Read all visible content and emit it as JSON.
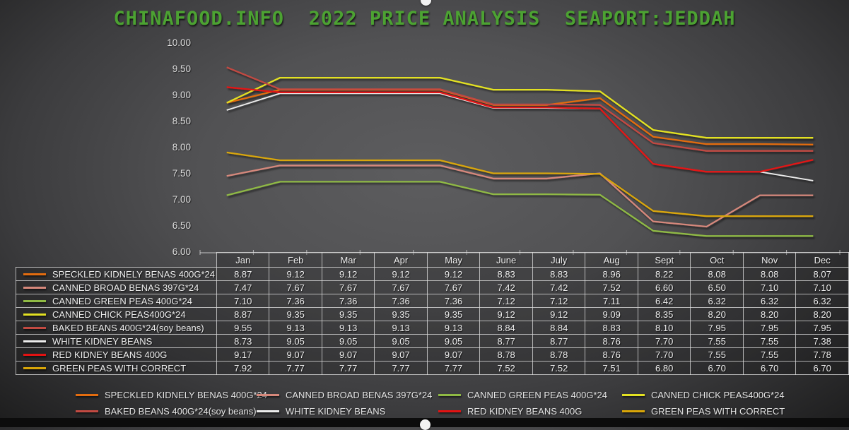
{
  "title": "CHINAFOOD.INFO  2022 PRICE ANALYSIS  SEAPORT:JEDDAH",
  "title_color": "#4CA232",
  "chart_data": {
    "type": "line",
    "title": "CHINAFOOD.INFO  2022 PRICE ANALYSIS  SEAPORT:JEDDAH",
    "xlabel": "",
    "ylabel": "",
    "ylim": [
      6.0,
      10.0
    ],
    "ytick_labels": [
      "10.00",
      "9.50",
      "9.00",
      "8.50",
      "8.00",
      "7.50",
      "7.00",
      "6.50",
      "6.00"
    ],
    "grid": false,
    "legend_position": "bottom",
    "data_table_shown": true,
    "categories": [
      "Jan",
      "Feb",
      "Mar",
      "Apr",
      "May",
      "June",
      "July",
      "Aug",
      "Sept",
      "Oct",
      "Nov",
      "Dec"
    ],
    "series": [
      {
        "name": "SPECKLED KIDNELY BENAS 400G*24",
        "color": "#E36C0F",
        "values": [
          8.87,
          9.12,
          9.12,
          9.12,
          9.12,
          8.83,
          8.83,
          8.96,
          8.22,
          8.08,
          8.08,
          8.07
        ]
      },
      {
        "name": "CANNED BROAD BENAS 397G*24",
        "color": "#D6887B",
        "values": [
          7.47,
          7.67,
          7.67,
          7.67,
          7.67,
          7.42,
          7.42,
          7.52,
          6.6,
          6.5,
          7.1,
          7.1
        ]
      },
      {
        "name": "CANNED GREEN PEAS 400G*24",
        "color": "#8FB944",
        "values": [
          7.1,
          7.36,
          7.36,
          7.36,
          7.36,
          7.12,
          7.12,
          7.11,
          6.42,
          6.32,
          6.32,
          6.32
        ]
      },
      {
        "name": "CANNED CHICK PEAS400G*24",
        "color": "#E3E122",
        "values": [
          8.87,
          9.35,
          9.35,
          9.35,
          9.35,
          9.12,
          9.12,
          9.09,
          8.35,
          8.2,
          8.2,
          8.2
        ]
      },
      {
        "name": "BAKED BEANS 400G*24(soy beans)",
        "color": "#C24A42",
        "values": [
          9.55,
          9.13,
          9.13,
          9.13,
          9.13,
          8.84,
          8.84,
          8.83,
          8.1,
          7.95,
          7.95,
          7.95
        ]
      },
      {
        "name": "WHITE KIDNEY BEANS",
        "color": "#ECECEC",
        "values": [
          8.73,
          9.05,
          9.05,
          9.05,
          9.05,
          8.77,
          8.77,
          8.76,
          7.7,
          7.55,
          7.55,
          7.38
        ]
      },
      {
        "name": "RED KIDNEY BEANS 400G",
        "color": "#E31212",
        "values": [
          9.17,
          9.07,
          9.07,
          9.07,
          9.07,
          8.78,
          8.78,
          8.76,
          7.7,
          7.55,
          7.55,
          7.78
        ]
      },
      {
        "name": "GREEN PEAS WITH CORRECT",
        "color": "#D9A608",
        "values": [
          7.92,
          7.77,
          7.77,
          7.77,
          7.77,
          7.52,
          7.52,
          7.51,
          6.8,
          6.7,
          6.7,
          6.7
        ]
      }
    ]
  }
}
